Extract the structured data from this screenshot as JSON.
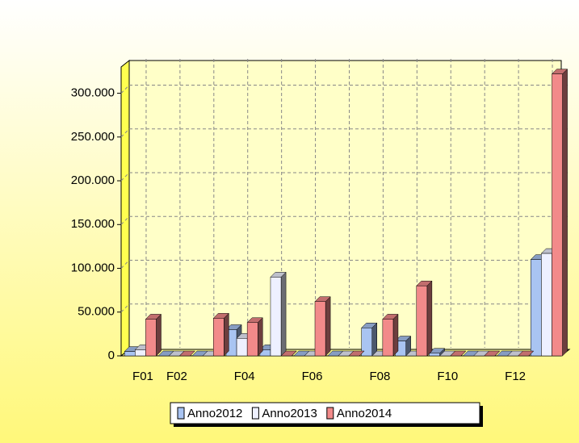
{
  "chart_data": {
    "type": "bar",
    "categories": [
      "F01",
      "F02",
      null,
      "F04",
      null,
      "F06",
      null,
      "F08",
      null,
      "F10",
      null,
      "F12",
      null
    ],
    "series": [
      {
        "name": "Anno2012",
        "color": "#a9c4f2",
        "values": [
          5000,
          0,
          0,
          30000,
          7000,
          0,
          0,
          32000,
          17000,
          3000,
          0,
          0,
          110000
        ]
      },
      {
        "name": "Anno2013",
        "color": "#eef0ff",
        "values": [
          7000,
          0,
          0,
          20000,
          90000,
          0,
          0,
          0,
          0,
          0,
          0,
          0,
          117000
        ]
      },
      {
        "name": "Anno2014",
        "color": "#f28a8a",
        "values": [
          42000,
          0,
          43000,
          38000,
          0,
          62000,
          0,
          42000,
          80000,
          0,
          0,
          0,
          322000
        ]
      }
    ],
    "ylim": [
      0,
      330000
    ],
    "yticks": [
      0,
      {
        "value": 50000,
        "label": "50.000"
      },
      {
        "value": 100000,
        "label": "100.000"
      },
      {
        "value": 150000,
        "label": "150.000"
      },
      {
        "value": 200000,
        "label": "200.000"
      },
      {
        "value": 250000,
        "label": "250.000"
      },
      {
        "value": 300000,
        "label": "300.000"
      }
    ],
    "grid": true,
    "legend": "bottom"
  }
}
